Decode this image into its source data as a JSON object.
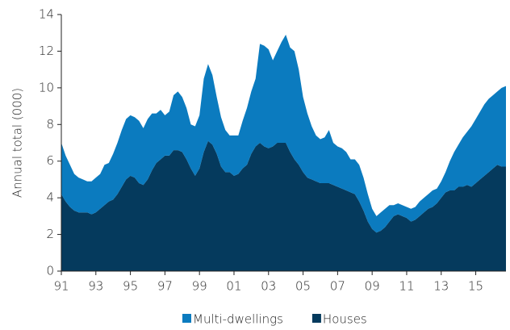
{
  "chart_data": {
    "type": "stacked-area",
    "y_label": "Annual total (000)",
    "x": [
      1991,
      1991.25,
      1991.5,
      1991.75,
      1992,
      1992.25,
      1992.5,
      1992.75,
      1993,
      1993.25,
      1993.5,
      1993.75,
      1994,
      1994.25,
      1994.5,
      1994.75,
      1995,
      1995.25,
      1995.5,
      1995.75,
      1996,
      1996.25,
      1996.5,
      1996.75,
      1997,
      1997.25,
      1997.5,
      1997.75,
      1998,
      1998.25,
      1998.5,
      1998.75,
      1999,
      1999.25,
      1999.5,
      1999.75,
      2000,
      2000.25,
      2000.5,
      2000.75,
      2001,
      2001.25,
      2001.5,
      2001.75,
      2002,
      2002.25,
      2002.5,
      2002.75,
      2003,
      2003.25,
      2003.5,
      2003.75,
      2004,
      2004.25,
      2004.5,
      2004.75,
      2005,
      2005.25,
      2005.5,
      2005.75,
      2006,
      2006.25,
      2006.5,
      2006.75,
      2007,
      2007.25,
      2007.5,
      2007.75,
      2008,
      2008.25,
      2008.5,
      2008.75,
      2009,
      2009.25,
      2009.5,
      2009.75,
      2010,
      2010.25,
      2010.5,
      2010.75,
      2011,
      2011.25,
      2011.5,
      2011.75,
      2012,
      2012.25,
      2012.5,
      2012.75,
      2013,
      2013.25,
      2013.5,
      2013.75,
      2014,
      2014.25,
      2014.5,
      2014.75,
      2015,
      2015.25,
      2015.5,
      2015.75,
      2016,
      2016.25,
      2016.5,
      2016.75
    ],
    "series": [
      {
        "name": "Multi-dwellings",
        "color": "#0b7bbf",
        "values": [
          2.8,
          2.5,
          2.3,
          2.0,
          1.9,
          1.8,
          1.7,
          1.8,
          1.9,
          1.9,
          2.2,
          2.1,
          2.5,
          2.8,
          3.1,
          3.3,
          3.3,
          3.3,
          3.4,
          3.1,
          3.3,
          3.1,
          2.7,
          2.7,
          2.2,
          2.4,
          3.0,
          3.2,
          3.0,
          2.8,
          2.4,
          2.7,
          2.9,
          4.0,
          4.2,
          3.8,
          3.1,
          2.7,
          2.3,
          2.0,
          2.2,
          2.1,
          2.6,
          3.1,
          3.4,
          3.7,
          5.4,
          5.5,
          5.4,
          4.7,
          5.0,
          5.5,
          5.9,
          5.7,
          5.9,
          5.2,
          4.1,
          3.5,
          2.9,
          2.5,
          2.4,
          2.5,
          2.9,
          2.3,
          2.2,
          2.2,
          2.1,
          1.8,
          1.9,
          2.0,
          1.8,
          1.5,
          1.1,
          0.9,
          1.0,
          1.0,
          0.9,
          0.6,
          0.6,
          0.6,
          0.6,
          0.7,
          0.7,
          0.8,
          0.8,
          0.8,
          0.9,
          0.8,
          0.9,
          1.1,
          1.6,
          2.1,
          2.3,
          2.7,
          2.9,
          3.3,
          3.5,
          3.7,
          3.9,
          4.0,
          4.0,
          4.0,
          4.3,
          4.4
        ]
      },
      {
        "name": "Houses",
        "color": "#053a5d",
        "values": [
          4.2,
          3.8,
          3.5,
          3.3,
          3.2,
          3.2,
          3.2,
          3.1,
          3.2,
          3.4,
          3.6,
          3.8,
          3.9,
          4.2,
          4.6,
          5.0,
          5.2,
          5.1,
          4.8,
          4.7,
          5.0,
          5.5,
          5.9,
          6.1,
          6.3,
          6.3,
          6.6,
          6.6,
          6.5,
          6.1,
          5.6,
          5.2,
          5.6,
          6.5,
          7.1,
          6.9,
          6.4,
          5.7,
          5.4,
          5.4,
          5.2,
          5.3,
          5.6,
          5.8,
          6.4,
          6.8,
          7.0,
          6.8,
          6.7,
          6.8,
          7.0,
          7.0,
          7.0,
          6.5,
          6.1,
          5.8,
          5.4,
          5.1,
          5.0,
          4.9,
          4.8,
          4.8,
          4.8,
          4.7,
          4.6,
          4.5,
          4.4,
          4.3,
          4.2,
          3.8,
          3.3,
          2.7,
          2.3,
          2.1,
          2.2,
          2.4,
          2.7,
          3.0,
          3.1,
          3.0,
          2.9,
          2.7,
          2.8,
          3.0,
          3.2,
          3.4,
          3.5,
          3.7,
          4.0,
          4.3,
          4.4,
          4.4,
          4.6,
          4.6,
          4.7,
          4.6,
          4.8,
          5.0,
          5.2,
          5.4,
          5.6,
          5.8,
          5.7,
          5.7
        ]
      }
    ],
    "xlim": [
      1991,
      2016.75
    ],
    "xticks": [
      {
        "value": 1991,
        "label": "91"
      },
      {
        "value": 1993,
        "label": "93"
      },
      {
        "value": 1995,
        "label": "95"
      },
      {
        "value": 1997,
        "label": "97"
      },
      {
        "value": 1999,
        "label": "99"
      },
      {
        "value": 2001,
        "label": "01"
      },
      {
        "value": 2003,
        "label": "03"
      },
      {
        "value": 2005,
        "label": "05"
      },
      {
        "value": 2007,
        "label": "07"
      },
      {
        "value": 2009,
        "label": "09"
      },
      {
        "value": 2011,
        "label": "11"
      },
      {
        "value": 2013,
        "label": "13"
      },
      {
        "value": 2015,
        "label": "15"
      }
    ],
    "ylim": [
      0,
      14
    ],
    "yticks": [
      0,
      2,
      4,
      6,
      8,
      10,
      12,
      14
    ]
  }
}
